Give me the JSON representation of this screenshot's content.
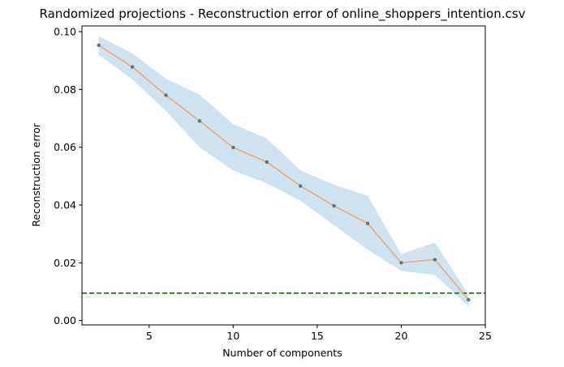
{
  "chart_data": {
    "type": "line",
    "title": "Randomized projections - Reconstruction error of online_shoppers_intention.csv",
    "xlabel": "Number of components",
    "ylabel": "Reconstruction error",
    "xlim": [
      1.0,
      25.0
    ],
    "ylim": [
      -0.0015,
      0.102
    ],
    "xticks": [
      5,
      10,
      15,
      20,
      25
    ],
    "xtick_labels": [
      "5",
      "10",
      "15",
      "20",
      "25"
    ],
    "yticks": [
      0.0,
      0.02,
      0.04,
      0.06,
      0.08,
      0.1
    ],
    "ytick_labels": [
      "0.00",
      "0.02",
      "0.04",
      "0.06",
      "0.08",
      "0.10"
    ],
    "grid": false,
    "series": [
      {
        "x": [
          2,
          4,
          6,
          8,
          10,
          12,
          14,
          16,
          18,
          20,
          22,
          24
        ],
        "values": [
          0.0953,
          0.0878,
          0.078,
          0.0691,
          0.0599,
          0.0549,
          0.0466,
          0.0397,
          0.0336,
          0.02,
          0.0211,
          0.0072
        ],
        "band_lower": [
          0.092,
          0.0835,
          0.0725,
          0.06,
          0.052,
          0.0475,
          0.0415,
          0.033,
          0.0245,
          0.0172,
          0.0158,
          0.005
        ],
        "band_upper": [
          0.0985,
          0.0925,
          0.0837,
          0.0782,
          0.068,
          0.063,
          0.052,
          0.047,
          0.0432,
          0.023,
          0.027,
          0.009
        ],
        "line_color": "#f4a46c",
        "marker_color": "#5f7380",
        "band_color": "#cfe2f0"
      }
    ],
    "reference_line": {
      "y": 0.0095,
      "style": "dashed",
      "color": "#008000"
    }
  }
}
